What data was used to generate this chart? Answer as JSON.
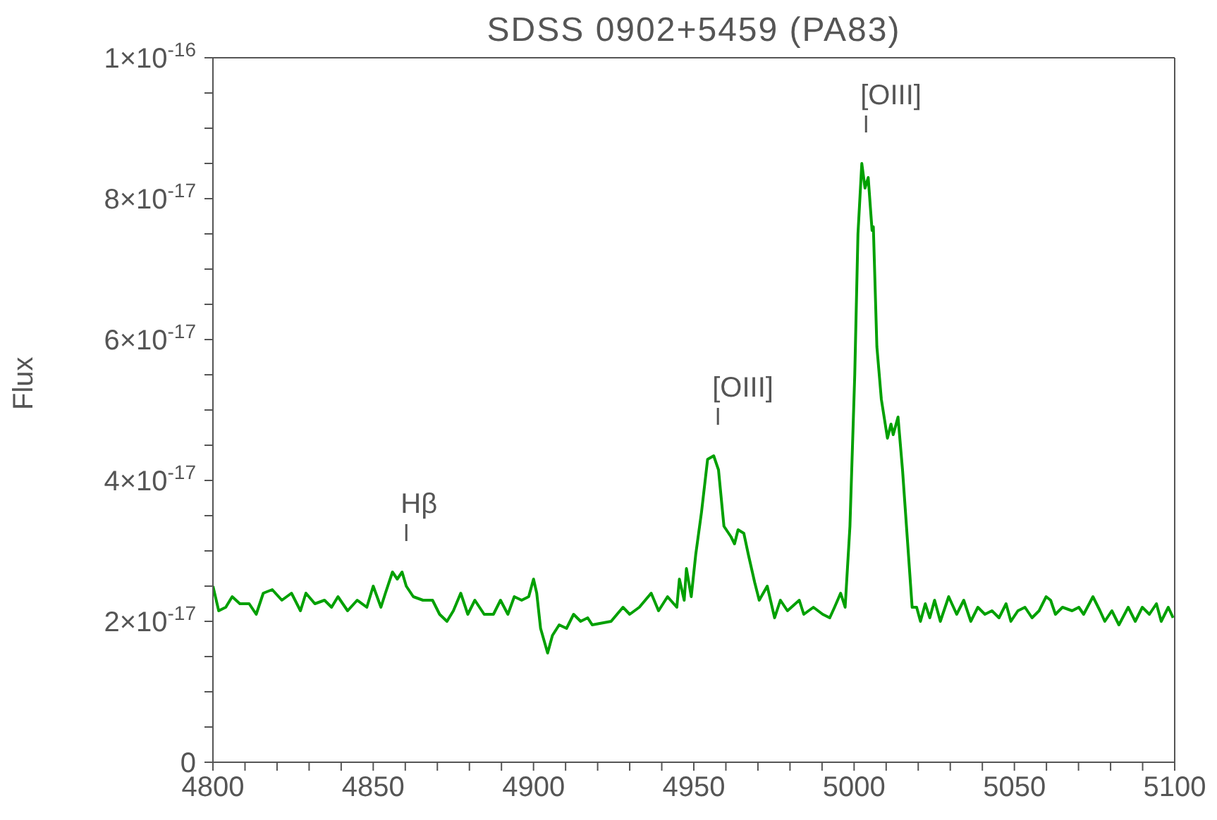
{
  "chart_data": {
    "type": "line",
    "title": "SDSS 0902+5459 (PA83)",
    "ylabel": "Flux",
    "marker": "none",
    "line_style": "solid",
    "xlim": [
      4800,
      5100
    ],
    "xticks": [
      4800,
      {
        "value": 4810,
        "label": null
      },
      {
        "value": 4820,
        "label": null
      },
      {
        "value": 4830,
        "label": null
      },
      {
        "value": 4840,
        "label": null
      },
      4850,
      {
        "value": 4860,
        "label": null
      },
      {
        "value": 4870,
        "label": null
      },
      {
        "value": 4880,
        "label": null
      },
      {
        "value": 4890,
        "label": null
      },
      4900,
      {
        "value": 4910,
        "label": null
      },
      {
        "value": 4920,
        "label": null
      },
      {
        "value": 4930,
        "label": null
      },
      {
        "value": 4940,
        "label": null
      },
      4950,
      {
        "value": 4960,
        "label": null
      },
      {
        "value": 4970,
        "label": null
      },
      {
        "value": 4980,
        "label": null
      },
      {
        "value": 4990,
        "label": null
      },
      5000,
      {
        "value": 5010,
        "label": null
      },
      {
        "value": 5020,
        "label": null
      },
      {
        "value": 5030,
        "label": null
      },
      {
        "value": 5040,
        "label": null
      },
      5050,
      {
        "value": 5060,
        "label": null
      },
      {
        "value": 5070,
        "label": null
      },
      {
        "value": 5080,
        "label": null
      },
      {
        "value": 5090,
        "label": null
      },
      5100
    ],
    "ylim": [
      0,
      1e-16
    ],
    "yticks": [
      0,
      {
        "value": 5e-18,
        "label": null
      },
      {
        "value": 1e-17,
        "label": null
      },
      {
        "value": 1.5e-17,
        "label": null
      },
      {
        "value": 2e-17,
        "label": "2×10$^{-17}$"
      },
      {
        "value": 2.5e-17,
        "label": null
      },
      {
        "value": 3e-17,
        "label": null
      },
      {
        "value": 3.5e-17,
        "label": null
      },
      {
        "value": 4e-17,
        "label": "4×10$^{-17}$"
      },
      {
        "value": 4.5e-17,
        "label": null
      },
      {
        "value": 5e-17,
        "label": null
      },
      {
        "value": 5.5e-17,
        "label": null
      },
      {
        "value": 6e-17,
        "label": "6×10$^{-17}$"
      },
      {
        "value": 6.5e-17,
        "label": null
      },
      {
        "value": 7e-17,
        "label": null
      },
      {
        "value": 7.5e-17,
        "label": null
      },
      {
        "value": 8e-17,
        "label": "8×10$^{-17}$"
      },
      {
        "value": 8.5e-17,
        "label": null
      },
      {
        "value": 9e-17,
        "label": null
      },
      {
        "value": 9.5e-17,
        "label": null
      },
      {
        "value": 1e-16,
        "label": "1×10$^{-16}$"
      }
    ],
    "annotations": [
      {
        "text": "Hβ",
        "x": 4859,
        "y": 2.7e-17
      },
      {
        "text": "[OIII]",
        "x": 4956.2,
        "y": 4.35e-17
      },
      {
        "text": "[OIII]",
        "x": 5002.4,
        "y": 8.5e-17
      }
    ],
    "series": [
      {
        "color": "#00a000",
        "x": [
          4800,
          4801.8,
          4804,
          4806,
          4808.4,
          4811.3,
          4813.5,
          4815.7,
          4818.5,
          4821.5,
          4824.5,
          4827.3,
          4829,
          4831.8,
          4834.8,
          4837,
          4839,
          4842,
          4845,
          4848,
          4850,
          4852.4,
          4853.8,
          4856,
          4857.5,
          4859,
          4860.3,
          4862.5,
          4865.5,
          4868.5,
          4870.7,
          4873,
          4875,
          4877.3,
          4879.5,
          4881.7,
          4884.6,
          4887.5,
          4889.7,
          4892,
          4894,
          4896.3,
          4898.5,
          4900,
          4901,
          4902.2,
          4904.4,
          4905.9,
          4908,
          4910.3,
          4912.5,
          4914.7,
          4916.9,
          4918.3,
          4924.2,
          4927.9,
          4930,
          4933,
          4936.7,
          4939,
          4941.8,
          4944.7,
          4945.5,
          4947,
          4947.7,
          4949.2,
          4950.6,
          4952.4,
          4954.3,
          4956.2,
          4957.7,
          4959.4,
          4961.6,
          4962.7,
          4963.8,
          4965.6,
          4967,
          4969,
          4970.4,
          4972.9,
          4975.2,
          4977,
          4979.2,
          4982.9,
          4984.3,
          4987.3,
          4990.2,
          4992.4,
          4993.9,
          4995.8,
          4997.2,
          4998.7,
          5000.2,
          5001.2,
          5002.4,
          5003.4,
          5004.4,
          5005.6,
          5006,
          5007.1,
          5008.5,
          5010.4,
          5011.5,
          5012.2,
          5013.7,
          5015.1,
          5018.1,
          5019.5,
          5020.7,
          5022.2,
          5023.6,
          5025.1,
          5026.9,
          5029.5,
          5032,
          5034.2,
          5036.4,
          5038.6,
          5040.8,
          5043,
          5045.2,
          5047.4,
          5048.9,
          5051.1,
          5053.3,
          5055.5,
          5057.7,
          5059.9,
          5061.3,
          5062.8,
          5065,
          5068,
          5070.1,
          5071.6,
          5074.5,
          5076.7,
          5078.2,
          5080.4,
          5082.6,
          5085.5,
          5087.7,
          5089.9,
          5092.1,
          5094.3,
          5095.8,
          5098,
          5099.5
        ],
        "values": [
          2.5e-17,
          2.15e-17,
          2.2e-17,
          2.35e-17,
          2.25e-17,
          2.25e-17,
          2.1e-17,
          2.4e-17,
          2.45e-17,
          2.3e-17,
          2.4e-17,
          2.15e-17,
          2.4e-17,
          2.25e-17,
          2.3e-17,
          2.2e-17,
          2.35e-17,
          2.15e-17,
          2.3e-17,
          2.2e-17,
          2.5e-17,
          2.2e-17,
          2.4e-17,
          2.7e-17,
          2.6e-17,
          2.7e-17,
          2.5e-17,
          2.35e-17,
          2.3e-17,
          2.3e-17,
          2.1e-17,
          2e-17,
          2.15e-17,
          2.4e-17,
          2.1e-17,
          2.3e-17,
          2.1e-17,
          2.1e-17,
          2.3e-17,
          2.1e-17,
          2.35e-17,
          2.3e-17,
          2.35e-17,
          2.6e-17,
          2.4e-17,
          1.9e-17,
          1.55e-17,
          1.8e-17,
          1.95e-17,
          1.9e-17,
          2.1e-17,
          2e-17,
          2.05e-17,
          1.95e-17,
          2e-17,
          2.2e-17,
          2.1e-17,
          2.2e-17,
          2.4e-17,
          2.15e-17,
          2.35e-17,
          2.2e-17,
          2.6e-17,
          2.3e-17,
          2.75e-17,
          2.35e-17,
          2.95e-17,
          3.55e-17,
          4.3e-17,
          4.35e-17,
          4.15e-17,
          3.35e-17,
          3.2e-17,
          3.1e-17,
          3.3e-17,
          3.25e-17,
          2.95e-17,
          2.55e-17,
          2.3e-17,
          2.5e-17,
          2.05e-17,
          2.3e-17,
          2.15e-17,
          2.3e-17,
          2.1e-17,
          2.2e-17,
          2.1e-17,
          2.05e-17,
          2.2e-17,
          2.4e-17,
          2.2e-17,
          3.35e-17,
          5.5e-17,
          7.5e-17,
          8.5e-17,
          8.15e-17,
          8.3e-17,
          7.55e-17,
          7.6e-17,
          5.9e-17,
          5.15e-17,
          4.6e-17,
          4.8e-17,
          4.65e-17,
          4.9e-17,
          4.15e-17,
          2.2e-17,
          2.2e-17,
          2e-17,
          2.25e-17,
          2.05e-17,
          2.3e-17,
          2e-17,
          2.35e-17,
          2.1e-17,
          2.3e-17,
          2e-17,
          2.2e-17,
          2.1e-17,
          2.15e-17,
          2.05e-17,
          2.25e-17,
          2e-17,
          2.15e-17,
          2.2e-17,
          2.05e-17,
          2.15e-17,
          2.35e-17,
          2.3e-17,
          2.1e-17,
          2.2e-17,
          2.15e-17,
          2.2e-17,
          2.1e-17,
          2.35e-17,
          2.15e-17,
          2e-17,
          2.15e-17,
          1.95e-17,
          2.2e-17,
          2e-17,
          2.2e-17,
          2.1e-17,
          2.25e-17,
          2e-17,
          2.2e-17,
          2.05e-17
        ]
      }
    ]
  }
}
